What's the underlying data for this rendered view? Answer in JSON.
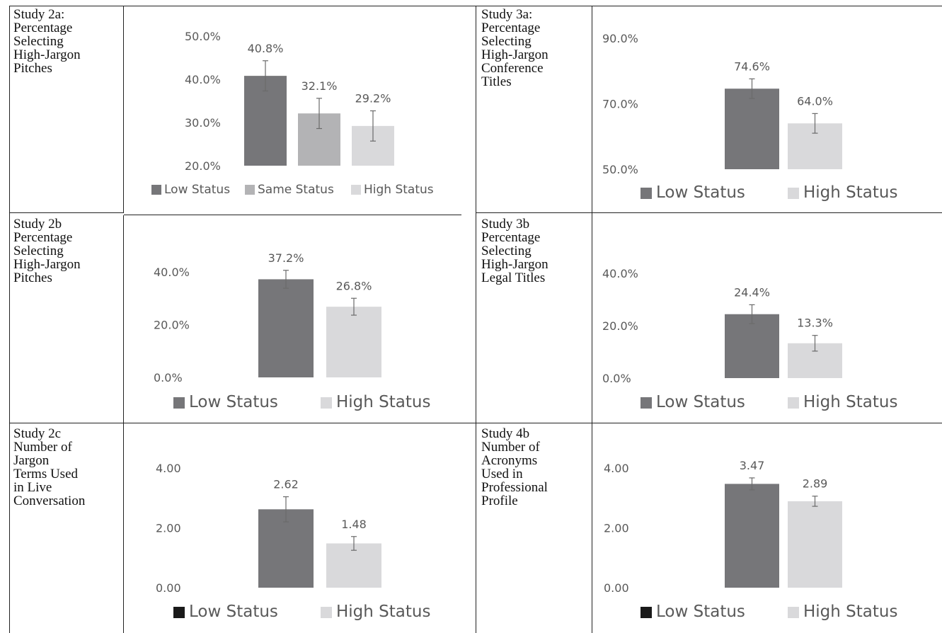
{
  "panels": [
    {
      "label": "Study 2a:\nPercentage\nSelecting\nHigh-Jargon\nPitches",
      "chart_data": {
        "type": "bar",
        "categories": [
          "Low Status",
          "Same Status",
          "High Status"
        ],
        "values": [
          40.8,
          32.1,
          29.2
        ],
        "value_labels": [
          "40.8%",
          "32.1%",
          "29.2%"
        ],
        "error": [
          3.5,
          3.5,
          3.5
        ],
        "colors": [
          "#767679",
          "#b3b3b5",
          "#d9d9db"
        ],
        "ylim": [
          20,
          50
        ],
        "yticks": [
          20,
          30,
          40,
          50
        ],
        "ytick_labels": [
          "20.0%",
          "30.0%",
          "40.0%",
          "50.0%"
        ],
        "legend": [
          "Low Status",
          "Same Status",
          "High Status"
        ],
        "legend_placement": "bottom",
        "grid": false
      }
    },
    {
      "label": "Study 3a:\nPercentage\nSelecting\nHigh-Jargon\nConference\nTitles",
      "chart_data": {
        "type": "bar",
        "categories": [
          "Low Status",
          "High Status"
        ],
        "values": [
          74.6,
          64.0
        ],
        "value_labels": [
          "74.6%",
          "64.0%"
        ],
        "error": [
          3.0,
          3.0
        ],
        "colors": [
          "#767679",
          "#d9d9db"
        ],
        "ylim": [
          50,
          90
        ],
        "yticks": [
          50,
          70,
          90
        ],
        "ytick_labels": [
          "50.0%",
          "70.0%",
          "90.0%"
        ],
        "legend": [
          "Low Status",
          "High Status"
        ],
        "legend_placement": "bottom",
        "grid": false
      }
    },
    {
      "label": "Study 2b\nPercentage\nSelecting\nHigh-Jargon\nPitches",
      "chart_data": {
        "type": "bar",
        "categories": [
          "Low Status",
          "High Status"
        ],
        "values": [
          37.2,
          26.8
        ],
        "value_labels": [
          "37.2%",
          "26.8%"
        ],
        "error": [
          3.4,
          3.2
        ],
        "colors": [
          "#767679",
          "#d9d9db"
        ],
        "ylim": [
          0,
          40
        ],
        "yticks": [
          0,
          20,
          40
        ],
        "ytick_labels": [
          "0.0%",
          "20.0%",
          "40.0%"
        ],
        "legend": [
          "Low Status",
          "High Status"
        ],
        "legend_placement": "bottom",
        "grid": false
      }
    },
    {
      "label": "Study 3b\nPercentage\nSelecting\nHigh-Jargon\nLegal Titles",
      "chart_data": {
        "type": "bar",
        "categories": [
          "Low Status",
          "High Status"
        ],
        "values": [
          24.4,
          13.3
        ],
        "value_labels": [
          "24.4%",
          "13.3%"
        ],
        "error": [
          3.6,
          3.0
        ],
        "colors": [
          "#767679",
          "#d9d9db"
        ],
        "ylim": [
          0,
          40
        ],
        "yticks": [
          0,
          20,
          40
        ],
        "ytick_labels": [
          "0.0%",
          "20.0%",
          "40.0%"
        ],
        "legend": [
          "Low Status",
          "High Status"
        ],
        "legend_placement": "bottom",
        "grid": false
      }
    },
    {
      "label": "Study 2c\nNumber of\nJargon\nTerms Used\nin Live\nConversation",
      "chart_data": {
        "type": "bar",
        "categories": [
          "Low Status",
          "High Status"
        ],
        "values": [
          2.62,
          1.48
        ],
        "value_labels": [
          "2.62",
          "1.48"
        ],
        "error": [
          0.42,
          0.23
        ],
        "colors": [
          "#767679",
          "#d9d9db"
        ],
        "legend_colors": [
          "#1a1a1a",
          "#d9d9db"
        ],
        "ylim": [
          0,
          4
        ],
        "yticks": [
          0,
          2,
          4
        ],
        "ytick_labels": [
          "0.00",
          "2.00",
          "4.00"
        ],
        "legend": [
          "Low Status",
          "High Status"
        ],
        "legend_placement": "bottom",
        "grid": false
      }
    },
    {
      "label": "Study 4b\nNumber of\nAcronyms\nUsed in\nProfessional\nProfile",
      "chart_data": {
        "type": "bar",
        "categories": [
          "Low Status",
          "High Status"
        ],
        "values": [
          3.47,
          2.89
        ],
        "value_labels": [
          "3.47",
          "2.89"
        ],
        "error": [
          0.2,
          0.17
        ],
        "colors": [
          "#767679",
          "#d9d9db"
        ],
        "legend_colors": [
          "#1a1a1a",
          "#d9d9db"
        ],
        "ylim": [
          0,
          4
        ],
        "yticks": [
          0,
          2,
          4
        ],
        "ytick_labels": [
          "0.00",
          "2.00",
          "4.00"
        ],
        "legend": [
          "Low Status",
          "High Status"
        ],
        "legend_placement": "bottom",
        "grid": false
      }
    }
  ]
}
